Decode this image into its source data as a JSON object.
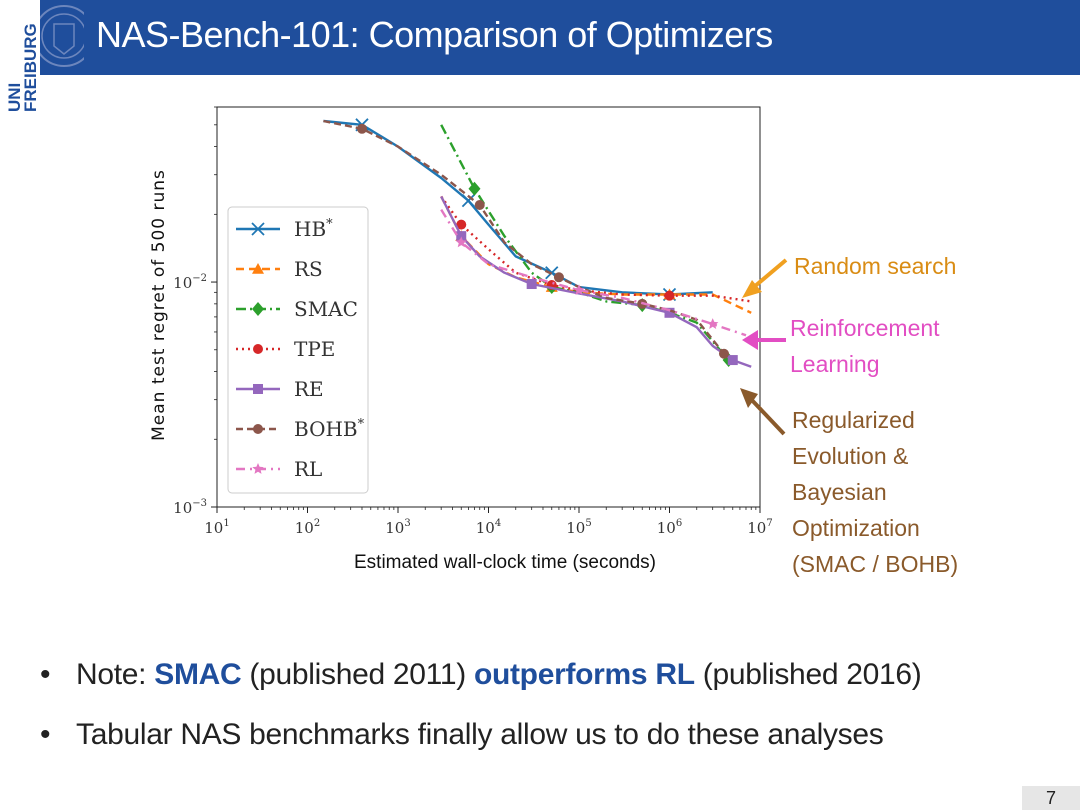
{
  "slide": {
    "title": "NAS-Bench-101: Comparison of Optimizers",
    "logo": "UNI FREIBURG",
    "page_number": "7"
  },
  "annotations": {
    "random_search": "Random search",
    "rl_line1": "Reinforcement",
    "rl_line2": "Learning",
    "re_line1": "Regularized",
    "re_line2": "Evolution &",
    "re_line3": "Bayesian",
    "re_line4": "Optimization",
    "re_line5": "(SMAC / BOHB)"
  },
  "bullets": {
    "b1_prefix": "Note: ",
    "b1_smac": "SMAC",
    "b1_mid": " (published 2011) ",
    "b1_outperforms": "outperforms RL",
    "b1_suffix": " (published 2016)",
    "b2": "Tabular NAS benchmarks finally allow us to do these analyses",
    "bullet_char": "•"
  },
  "chart_data": {
    "type": "line",
    "xscale": "log",
    "yscale": "log",
    "xlabel": "Estimated wall-clock time (seconds)",
    "ylabel": "Mean test regret of 500 runs",
    "xlim": [
      10,
      10000000
    ],
    "ylim": [
      0.001,
      0.06
    ],
    "xticks": [
      10,
      100,
      1000,
      10000,
      100000,
      1000000,
      10000000
    ],
    "xtick_exps": [
      "1",
      "2",
      "3",
      "4",
      "5",
      "6",
      "7"
    ],
    "yticks": [
      0.01,
      0.001
    ],
    "ytick_exps": [
      "−2",
      "−3"
    ],
    "tick_base": "10",
    "legend_position": "left",
    "series": [
      {
        "name": "HB",
        "sup": "*",
        "color": "#1f77b4",
        "marker": "x",
        "dash": "",
        "x": [
          150,
          400,
          1000,
          3000,
          6000,
          10000,
          20000,
          50000,
          100000,
          300000,
          1000000,
          3000000
        ],
        "y": [
          0.052,
          0.05,
          0.04,
          0.029,
          0.023,
          0.018,
          0.013,
          0.011,
          0.0095,
          0.009,
          0.0088,
          0.009
        ]
      },
      {
        "name": "RS",
        "sup": "",
        "color": "#ff7f0e",
        "marker": "triangle",
        "dash": "8,5",
        "x": [
          3000,
          5000,
          10000,
          20000,
          50000,
          100000,
          300000,
          1000000,
          3000000,
          8000000
        ],
        "y": [
          0.024,
          0.016,
          0.012,
          0.0105,
          0.0095,
          0.009,
          0.0088,
          0.0088,
          0.0088,
          0.0073
        ]
      },
      {
        "name": "SMAC",
        "sup": "",
        "color": "#2ca02c",
        "marker": "diamond",
        "dash": "10,4,2,4",
        "x": [
          3000,
          7000,
          15000,
          30000,
          50000,
          100000,
          200000,
          500000,
          1000000,
          2000000,
          4500000
        ],
        "y": [
          0.05,
          0.026,
          0.016,
          0.011,
          0.0095,
          0.009,
          0.0082,
          0.0079,
          0.0073,
          0.0066,
          0.0045
        ]
      },
      {
        "name": "TPE",
        "sup": "",
        "color": "#d62728",
        "marker": "circle",
        "dash": "2,4",
        "x": [
          3000,
          5000,
          10000,
          20000,
          50000,
          100000,
          300000,
          1000000,
          3000000,
          8000000
        ],
        "y": [
          0.024,
          0.018,
          0.014,
          0.011,
          0.0097,
          0.0092,
          0.0088,
          0.0087,
          0.0087,
          0.0082
        ]
      },
      {
        "name": "RE",
        "sup": "",
        "color": "#9467bd",
        "marker": "square",
        "dash": "",
        "x": [
          3000,
          5000,
          8000,
          15000,
          30000,
          100000,
          300000,
          1000000,
          2000000,
          3000000,
          5000000,
          8000000
        ],
        "y": [
          0.024,
          0.016,
          0.013,
          0.011,
          0.0098,
          0.0089,
          0.0082,
          0.0073,
          0.0063,
          0.0052,
          0.0045,
          0.0042
        ]
      },
      {
        "name": "BOHB",
        "sup": "*",
        "color": "#8c564b",
        "marker": "circle",
        "dash": "7,4",
        "x": [
          150,
          400,
          1000,
          3000,
          8000,
          15000,
          30000,
          60000,
          100000,
          200000,
          500000,
          1000000,
          2000000,
          4000000
        ],
        "y": [
          0.052,
          0.048,
          0.04,
          0.03,
          0.022,
          0.015,
          0.012,
          0.0105,
          0.0095,
          0.0085,
          0.008,
          0.0075,
          0.0068,
          0.0048
        ]
      },
      {
        "name": "RL",
        "sup": "",
        "color": "#e377c2",
        "marker": "star",
        "dash": "9,5,2,5",
        "x": [
          3000,
          5000,
          10000,
          30000,
          100000,
          300000,
          1000000,
          3000000,
          7000000
        ],
        "y": [
          0.021,
          0.015,
          0.012,
          0.0105,
          0.0092,
          0.0085,
          0.0075,
          0.0065,
          0.0058
        ]
      }
    ]
  }
}
